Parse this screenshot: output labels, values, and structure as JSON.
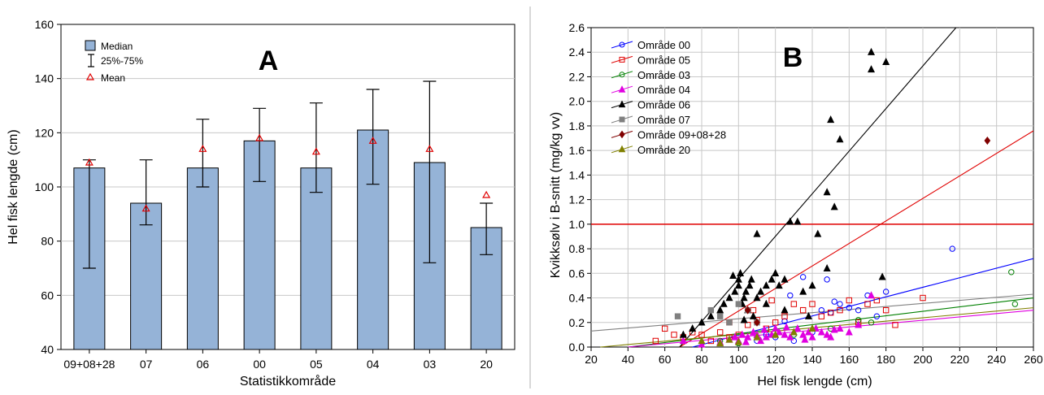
{
  "chart_data": [
    {
      "type": "bar",
      "panel_letter": "A",
      "categories": [
        "09+08+28",
        "07",
        "06",
        "00",
        "05",
        "04",
        "03",
        "20"
      ],
      "median": [
        107,
        94,
        107,
        117,
        107,
        121,
        109,
        85
      ],
      "q25": [
        70,
        86,
        100,
        102,
        98,
        101,
        72,
        75
      ],
      "q75": [
        110,
        110,
        125,
        129,
        131,
        136,
        139,
        94
      ],
      "mean": [
        109,
        92,
        114,
        118,
        113,
        117,
        114,
        97
      ],
      "xlabel": "Statistikkområde",
      "ylabel": "Hel fisk lengde (cm)",
      "ylim": [
        40,
        160
      ],
      "yticks": [
        "40",
        "60",
        "80",
        "100",
        "120",
        "140",
        "160"
      ],
      "legend": [
        "Median",
        "25%-75%",
        "Mean"
      ],
      "legend_position": "top-left",
      "grid": true,
      "colors": {
        "bar": "#95b3d7",
        "mean": "#e00000",
        "grid": "#c8c8c8"
      }
    },
    {
      "type": "scatter",
      "panel_letter": "B",
      "xlabel": "Hel fisk lengde (cm)",
      "ylabel": "Kvikksølv i B-snitt (mg/kg vv)",
      "xlim": [
        20,
        260
      ],
      "ylim": [
        0,
        2.6
      ],
      "xticks": [
        "20",
        "40",
        "60",
        "80",
        "100",
        "120",
        "140",
        "160",
        "180",
        "200",
        "220",
        "240",
        "260"
      ],
      "yticks": [
        "0.0",
        "0.2",
        "0.4",
        "0.6",
        "0.8",
        "1.0",
        "1.2",
        "1.4",
        "1.6",
        "1.8",
        "2.0",
        "2.2",
        "2.4",
        "2.6"
      ],
      "reference_line": {
        "y": 1.0,
        "color": "#e00000"
      },
      "legend_position": "top-left",
      "grid": true,
      "series": [
        {
          "name": "Område 00",
          "color": "#0000ff",
          "marker": "circle-open",
          "fit_line": [
            [
              75,
              0
            ],
            [
              260,
              0.72
            ]
          ],
          "points": [
            [
              100,
              0.03
            ],
            [
              110,
              0.05
            ],
            [
              120,
              0.08
            ],
            [
              125,
              0.21
            ],
            [
              128,
              0.42
            ],
            [
              135,
              0.57
            ],
            [
              140,
              0.12
            ],
            [
              145,
              0.3
            ],
            [
              148,
              0.55
            ],
            [
              150,
              0.28
            ],
            [
              152,
              0.37
            ],
            [
              155,
              0.35
            ],
            [
              160,
              0.32
            ],
            [
              165,
              0.3
            ],
            [
              170,
              0.42
            ],
            [
              175,
              0.25
            ],
            [
              180,
              0.45
            ],
            [
              216,
              0.8
            ],
            [
              130,
              0.05
            ],
            [
              115,
              0.1
            ]
          ]
        },
        {
          "name": "Område 05",
          "color": "#e00000",
          "marker": "square-open",
          "fit_line": [
            [
              68,
              0
            ],
            [
              260,
              1.76
            ]
          ],
          "points": [
            [
              60,
              0.15
            ],
            [
              65,
              0.1
            ],
            [
              70,
              0.08
            ],
            [
              75,
              0.12
            ],
            [
              80,
              0.1
            ],
            [
              85,
              0.05
            ],
            [
              90,
              0.12
            ],
            [
              95,
              0.08
            ],
            [
              100,
              0.1
            ],
            [
              105,
              0.18
            ],
            [
              110,
              0.22
            ],
            [
              115,
              0.15
            ],
            [
              120,
              0.2
            ],
            [
              125,
              0.25
            ],
            [
              130,
              0.35
            ],
            [
              135,
              0.3
            ],
            [
              140,
              0.35
            ],
            [
              145,
              0.25
            ],
            [
              150,
              0.28
            ],
            [
              155,
              0.3
            ],
            [
              160,
              0.38
            ],
            [
              165,
              0.2
            ],
            [
              170,
              0.35
            ],
            [
              175,
              0.38
            ],
            [
              180,
              0.3
            ],
            [
              185,
              0.18
            ],
            [
              200,
              0.4
            ],
            [
              55,
              0.05
            ],
            [
              95,
              0.2
            ],
            [
              108,
              0.3
            ],
            [
              118,
              0.38
            ]
          ]
        },
        {
          "name": "Område 03",
          "color": "#008000",
          "marker": "circle-open",
          "fit_line": [
            [
              40,
              0
            ],
            [
              260,
              0.4
            ]
          ],
          "points": [
            [
              90,
              0.05
            ],
            [
              100,
              0.03
            ],
            [
              110,
              0.08
            ],
            [
              130,
              0.1
            ],
            [
              150,
              0.15
            ],
            [
              165,
              0.22
            ],
            [
              172,
              0.2
            ],
            [
              248,
              0.61
            ],
            [
              250,
              0.35
            ]
          ]
        },
        {
          "name": "Område 04",
          "color": "#e000e0",
          "marker": "triangle",
          "fit_line": [
            [
              40,
              0
            ],
            [
              260,
              0.3
            ]
          ],
          "points": [
            [
              70,
              0.05
            ],
            [
              80,
              0.02
            ],
            [
              90,
              0.04
            ],
            [
              95,
              0.06
            ],
            [
              100,
              0.05
            ],
            [
              102,
              0.1
            ],
            [
              105,
              0.08
            ],
            [
              108,
              0.12
            ],
            [
              110,
              0.1
            ],
            [
              112,
              0.05
            ],
            [
              115,
              0.08
            ],
            [
              118,
              0.1
            ],
            [
              120,
              0.15
            ],
            [
              122,
              0.12
            ],
            [
              125,
              0.1
            ],
            [
              128,
              0.08
            ],
            [
              130,
              0.12
            ],
            [
              132,
              0.15
            ],
            [
              135,
              0.1
            ],
            [
              138,
              0.12
            ],
            [
              140,
              0.08
            ],
            [
              142,
              0.15
            ],
            [
              145,
              0.12
            ],
            [
              148,
              0.1
            ],
            [
              150,
              0.08
            ],
            [
              155,
              0.15
            ],
            [
              160,
              0.12
            ],
            [
              165,
              0.18
            ],
            [
              172,
              0.42
            ],
            [
              98,
              0.08
            ],
            [
              104,
              0.04
            ],
            [
              114,
              0.14
            ],
            [
              126,
              0.16
            ],
            [
              136,
              0.06
            ],
            [
              152,
              0.14
            ]
          ]
        },
        {
          "name": "Område 06",
          "color": "#000000",
          "marker": "triangle",
          "fit_line": [
            [
              68,
              0
            ],
            [
              218,
              2.6
            ]
          ],
          "points": [
            [
              70,
              0.1
            ],
            [
              75,
              0.15
            ],
            [
              80,
              0.2
            ],
            [
              85,
              0.25
            ],
            [
              90,
              0.3
            ],
            [
              92,
              0.35
            ],
            [
              95,
              0.4
            ],
            [
              98,
              0.45
            ],
            [
              100,
              0.5
            ],
            [
              100,
              0.55
            ],
            [
              101,
              0.6
            ],
            [
              102,
              0.35
            ],
            [
              103,
              0.4
            ],
            [
              104,
              0.45
            ],
            [
              105,
              0.3
            ],
            [
              106,
              0.5
            ],
            [
              107,
              0.55
            ],
            [
              108,
              0.25
            ],
            [
              110,
              0.4
            ],
            [
              110,
              0.92
            ],
            [
              112,
              0.45
            ],
            [
              115,
              0.5
            ],
            [
              118,
              0.55
            ],
            [
              120,
              0.6
            ],
            [
              122,
              0.5
            ],
            [
              125,
              0.55
            ],
            [
              128,
              1.02
            ],
            [
              132,
              1.02
            ],
            [
              135,
              0.45
            ],
            [
              138,
              0.25
            ],
            [
              140,
              0.5
            ],
            [
              143,
              0.92
            ],
            [
              148,
              0.64
            ],
            [
              148,
              1.26
            ],
            [
              150,
              1.85
            ],
            [
              152,
              1.14
            ],
            [
              155,
              1.69
            ],
            [
              172,
              2.26
            ],
            [
              172,
              2.4
            ],
            [
              180,
              2.32
            ],
            [
              178,
              0.57
            ],
            [
              97,
              0.58
            ],
            [
              103,
              0.22
            ],
            [
              115,
              0.35
            ],
            [
              125,
              0.3
            ]
          ]
        },
        {
          "name": "Område 07",
          "color": "#808080",
          "marker": "square",
          "fit_line": [
            [
              20,
              0.13
            ],
            [
              260,
              0.43
            ]
          ],
          "points": [
            [
              67,
              0.25
            ],
            [
              85,
              0.3
            ],
            [
              90,
              0.25
            ],
            [
              95,
              0.2
            ],
            [
              100,
              0.35
            ],
            [
              105,
              0.3
            ],
            [
              110,
              0.2
            ]
          ]
        },
        {
          "name": "Område 09+08+28",
          "color": "#800000",
          "marker": "diamond",
          "fit_line": [],
          "points": [
            [
              235,
              1.68
            ],
            [
              105,
              0.3
            ],
            [
              110,
              0.2
            ]
          ]
        },
        {
          "name": "Område 20",
          "color": "#808000",
          "marker": "triangle",
          "fit_line": [
            [
              25,
              0
            ],
            [
              260,
              0.32
            ]
          ],
          "points": [
            [
              80,
              0.05
            ],
            [
              90,
              0.03
            ],
            [
              95,
              0.06
            ],
            [
              100,
              0.04
            ],
            [
              110,
              0.08
            ],
            [
              120,
              0.1
            ],
            [
              130,
              0.12
            ],
            [
              140,
              0.15
            ]
          ]
        }
      ]
    }
  ]
}
